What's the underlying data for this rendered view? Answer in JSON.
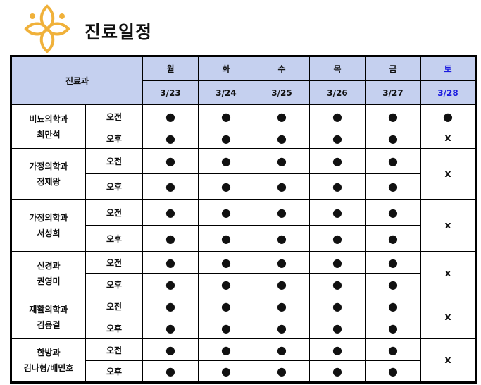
{
  "title": "진료일정",
  "logo": {
    "icon": "flower-people-logo",
    "color": "#f0b13a"
  },
  "header": {
    "dept_label": "진료과",
    "days": [
      {
        "day": "월",
        "date": "3/23"
      },
      {
        "day": "화",
        "date": "3/24"
      },
      {
        "day": "수",
        "date": "3/25"
      },
      {
        "day": "목",
        "date": "3/26"
      },
      {
        "day": "금",
        "date": "3/27"
      },
      {
        "day": "토",
        "date": "3/28"
      }
    ]
  },
  "colors": {
    "header_bg": "#c5d0ef",
    "saturday": "#1a1adf"
  },
  "symbols": {
    "open": "●",
    "closed": "x"
  },
  "doctors": [
    {
      "dept": "비뇨의학과",
      "name": "최만석",
      "am": "오전",
      "pm": "오후",
      "am_sat": "●",
      "pm_sat": "x",
      "merged_sat": false
    },
    {
      "dept": "가정의학과",
      "name": "정제왕",
      "am": "오전",
      "pm": "오후",
      "sat": "x",
      "merged_sat": true
    },
    {
      "dept": "가정의학과",
      "name": "서성희",
      "am": "오전",
      "pm": "오후",
      "sat": "x",
      "merged_sat": true
    },
    {
      "dept": "신경과",
      "name": "권영미",
      "am": "오전",
      "pm": "오후",
      "sat": "x",
      "merged_sat": true
    },
    {
      "dept": "재활의학과",
      "name": "김용걸",
      "am": "오전",
      "pm": "오후",
      "sat": "x",
      "merged_sat": true
    },
    {
      "dept": "한방과",
      "name": "김나형/배민호",
      "am": "오전",
      "pm": "오후",
      "sat": "x",
      "merged_sat": true
    }
  ]
}
